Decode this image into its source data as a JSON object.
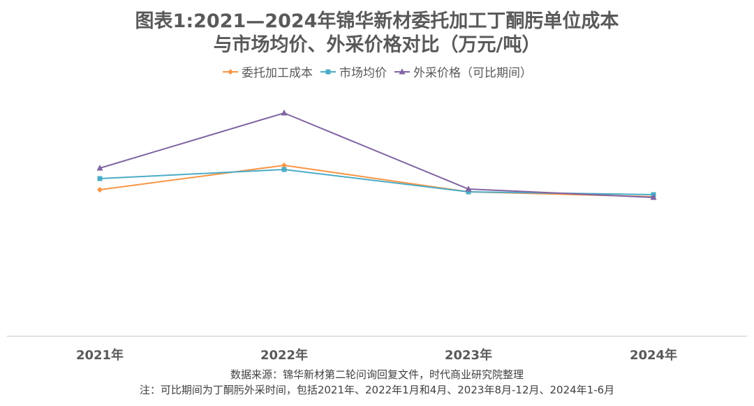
{
  "chart_data": {
    "type": "line",
    "title": "图表1:2021—2024年锦华新材委托加工丁酮肟单位成本",
    "subtitle": "与市场均价、外采价格对比（万元/吨）",
    "categories": [
      "2021年",
      "2022年",
      "2023年",
      "2024年"
    ],
    "series": [
      {
        "name": "委托加工成本",
        "color": "#F79646",
        "marker": "diamond",
        "values": [
          2.1,
          2.45,
          2.07,
          2.0
        ]
      },
      {
        "name": "市场均价",
        "color": "#4BACC6",
        "marker": "square",
        "values": [
          2.26,
          2.39,
          2.07,
          2.03
        ]
      },
      {
        "name": "外采价格（可比期间）",
        "color": "#8064A2",
        "marker": "triangle",
        "values": [
          2.41,
          3.2,
          2.11,
          1.99
        ]
      }
    ],
    "ylim": [
      0,
      3.5
    ],
    "xlabel": "",
    "ylabel": "",
    "grid": false,
    "legend_position": "top",
    "notes": [
      "数据来源：锦华新材第二轮问询回复文件，时代商业研究院整理",
      "注：可比期间为丁酮肟外采时间，包括2021年、2022年1月和4月、2023年8月-12月、2024年1-6月"
    ]
  }
}
